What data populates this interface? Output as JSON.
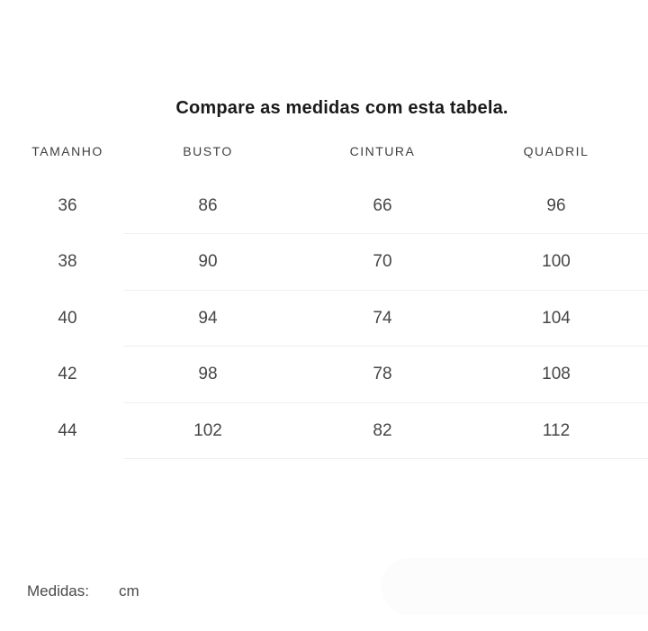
{
  "title": "Compare as medidas com esta tabela.",
  "table": {
    "headers": [
      "TAMANHO",
      "BUSTO",
      "CINTURA",
      "QUADRIL"
    ],
    "rows": [
      [
        "36",
        "86",
        "66",
        "96"
      ],
      [
        "38",
        "90",
        "70",
        "100"
      ],
      [
        "40",
        "94",
        "74",
        "104"
      ],
      [
        "42",
        "98",
        "78",
        "108"
      ],
      [
        "44",
        "102",
        "82",
        "112"
      ]
    ]
  },
  "footer": {
    "label": "Medidas:",
    "unit": "cm"
  },
  "colors": {
    "background": "#ffffff",
    "title_text": "#1a1a1a",
    "header_text": "#3f3f3f",
    "cell_text": "#464646",
    "divider": "#efefef",
    "bottom_panel": "#fcfcfc"
  }
}
